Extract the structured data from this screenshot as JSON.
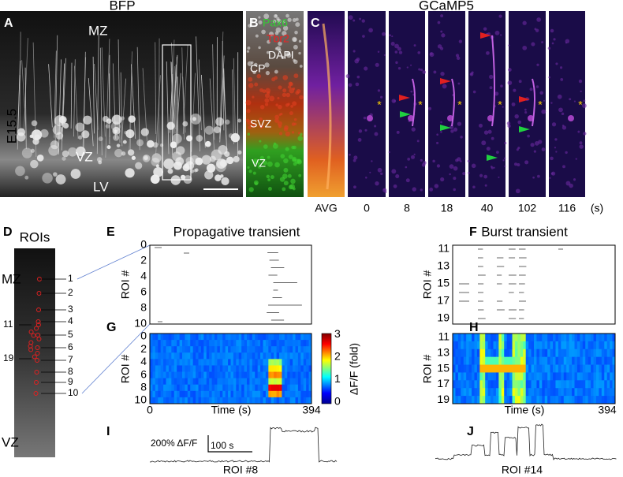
{
  "panel_a": {
    "letter": "A",
    "title": "BFP",
    "side_label": "E15.5",
    "labels": [
      "MZ",
      "VZ",
      "LV"
    ]
  },
  "panel_b": {
    "letter": "B",
    "stains": [
      "Pax6",
      "Tbr2",
      "DAPI"
    ],
    "labels": [
      "CP",
      "SVZ",
      "VZ"
    ]
  },
  "panel_c": {
    "letter": "C",
    "title": "GCaMP5",
    "frame_labels": [
      "AVG",
      "0",
      "8",
      "18",
      "40",
      "102",
      "116"
    ],
    "unit": "(s)",
    "marker": "*"
  },
  "panel_d": {
    "letter": "D",
    "title": "ROIs",
    "labels": [
      "MZ",
      "VZ"
    ],
    "roi_labels": [
      "1",
      "2",
      "3",
      "4",
      "5",
      "6",
      "7",
      "8",
      "9",
      "10",
      "11",
      "19"
    ]
  },
  "panel_e": {
    "letter": "E",
    "title": "Propagative transient",
    "y_label": "ROI #",
    "y_ticks": [
      "0",
      "2",
      "4",
      "6",
      "8",
      "10"
    ]
  },
  "panel_f": {
    "letter": "F",
    "title": "Burst transient",
    "y_label": "ROI #",
    "y_ticks": [
      "11",
      "13",
      "15",
      "17",
      "19"
    ]
  },
  "panel_g": {
    "letter": "G",
    "y_label": "ROI #",
    "y_ticks": [
      "0",
      "2",
      "4",
      "6",
      "8",
      "10"
    ],
    "x_label": "Time (s)",
    "x_ticks": [
      "0",
      "394"
    ],
    "colorbar_ticks": [
      "0",
      "1",
      "2",
      "3"
    ],
    "colorbar_label": "ΔF/F (fold)"
  },
  "panel_h": {
    "letter": "H",
    "y_label": "ROI #",
    "y_ticks": [
      "11",
      "13",
      "15",
      "17",
      "19"
    ],
    "x_label": "Time (s)",
    "x_ticks": [
      "0",
      "394"
    ]
  },
  "panel_i": {
    "letter": "I",
    "scale_y": "200% ΔF/F",
    "scale_x": "100 s",
    "caption": "ROI #8"
  },
  "panel_j": {
    "letter": "J",
    "caption": "ROI #14"
  }
}
